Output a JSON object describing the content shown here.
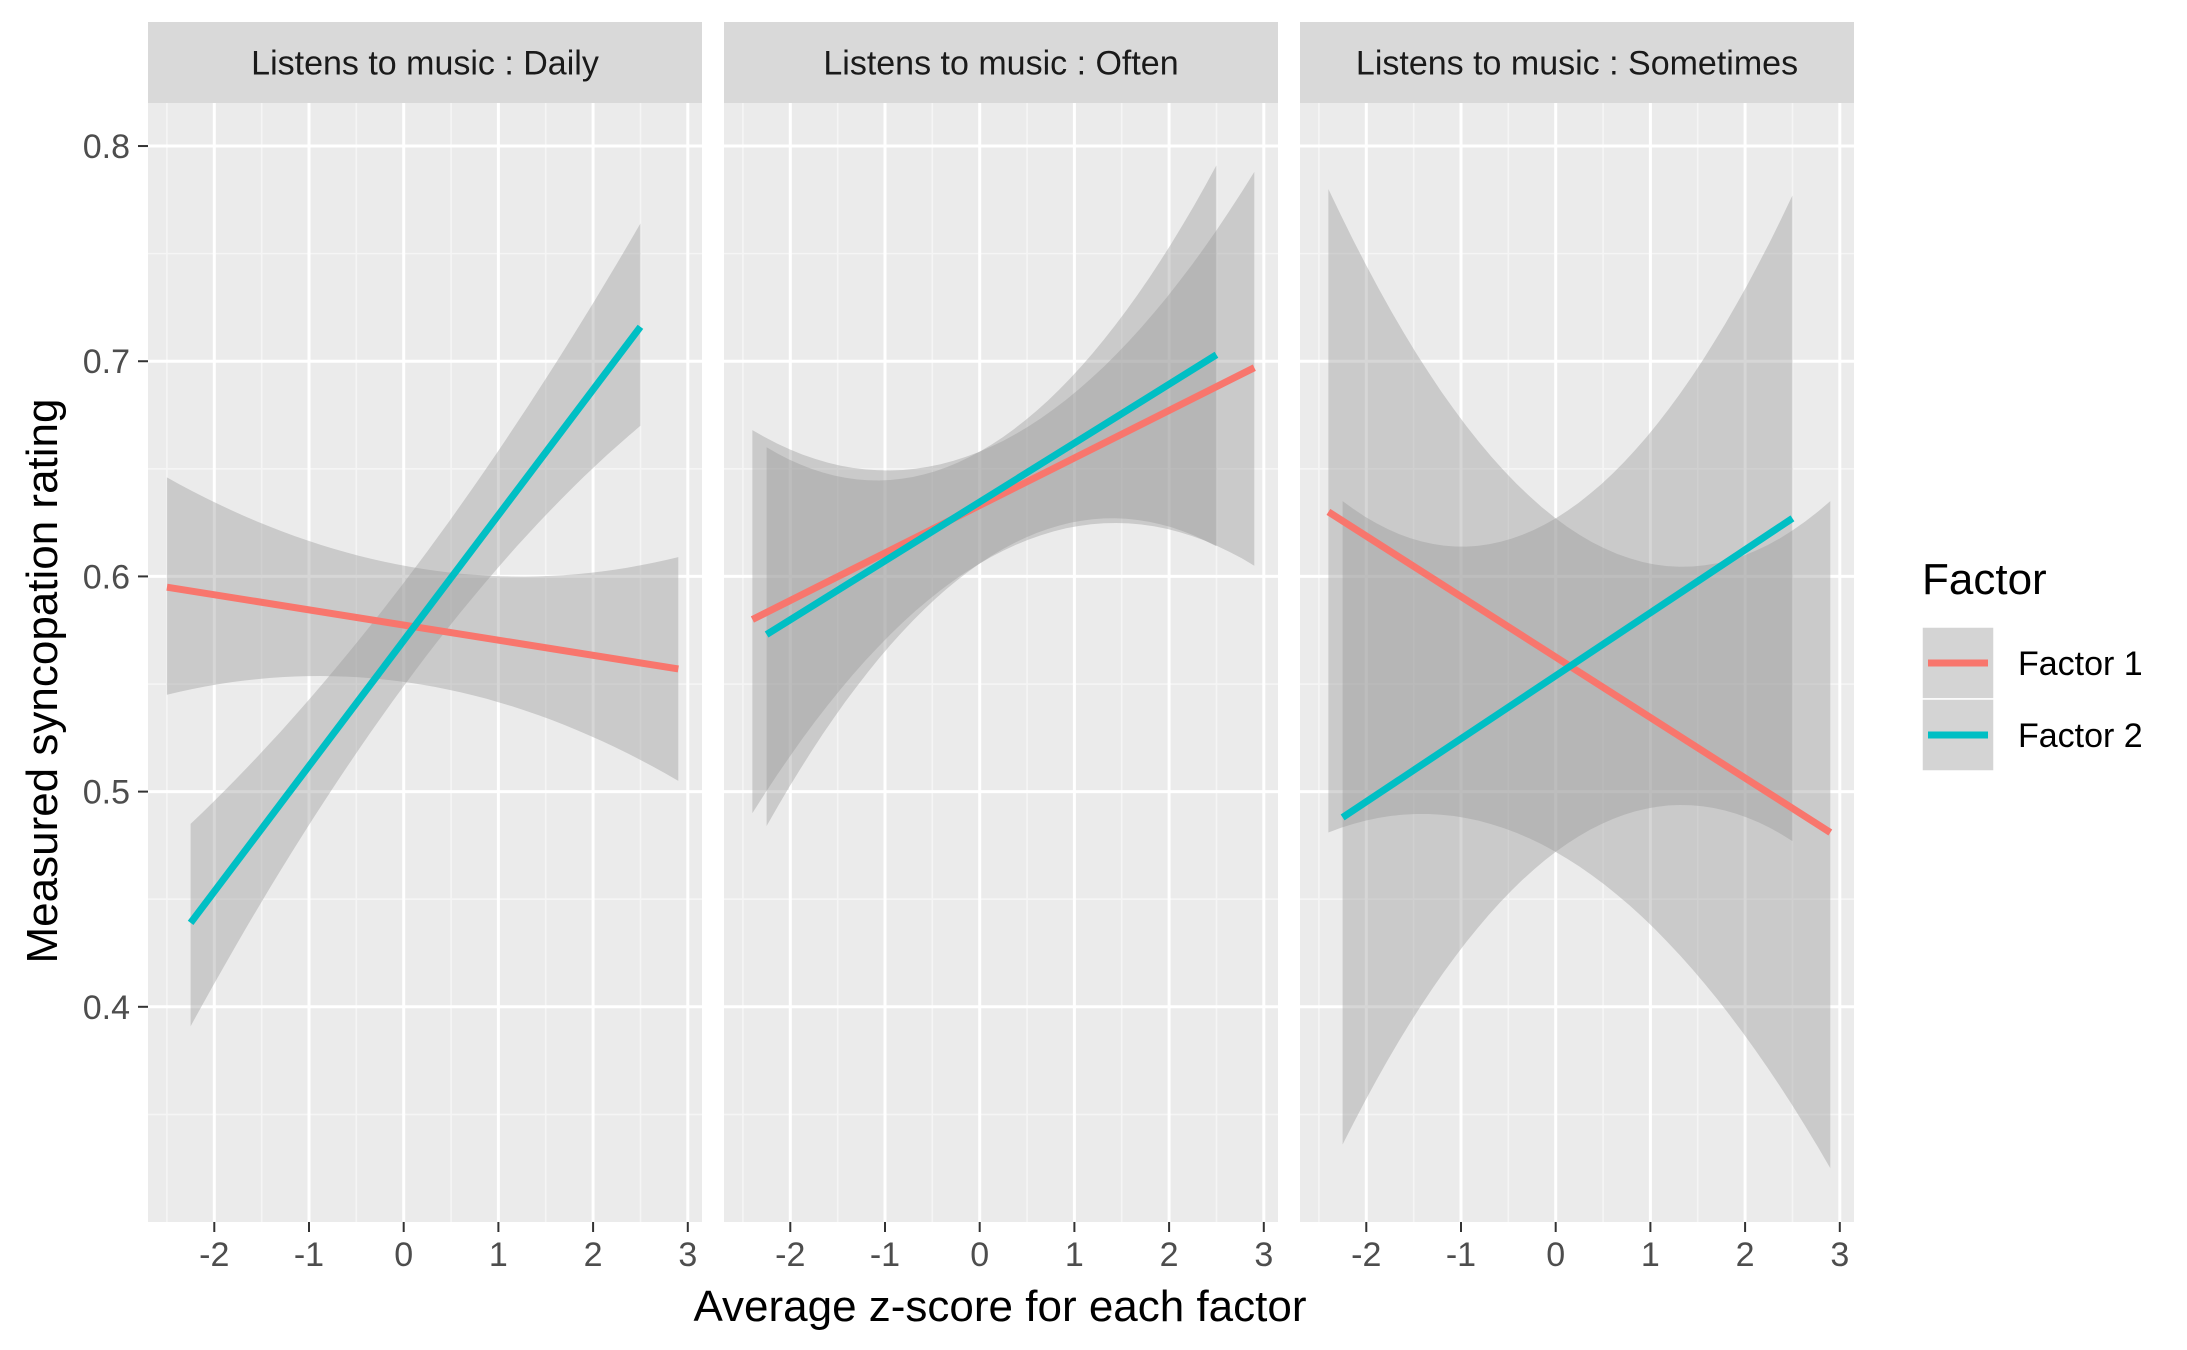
{
  "chart_data": {
    "type": "line",
    "xlabel": "Average z-score for each factor",
    "ylabel": "Measured syncopation rating",
    "xlim": [
      -2.7,
      3.15
    ],
    "ylim": [
      0.3,
      0.82
    ],
    "x_ticks": [
      -2,
      -1,
      0,
      1,
      2,
      3
    ],
    "x_tick_labels": [
      "-2",
      "-1",
      "0",
      "1",
      "2",
      "3"
    ],
    "y_ticks": [
      0.4,
      0.5,
      0.6,
      0.7,
      0.8
    ],
    "y_tick_labels": [
      "0.4",
      "0.5",
      "0.6",
      "0.7",
      "0.8"
    ],
    "grid": true,
    "legend": {
      "title": "Factor",
      "placement": "right",
      "entries": [
        {
          "name": "Factor 1",
          "color": "#F8766D"
        },
        {
          "name": "Factor 2",
          "color": "#00BFC4"
        }
      ]
    },
    "panels": [
      {
        "strip": "Listens to music : Daily",
        "series": [
          {
            "name": "Factor 1",
            "color": "#F8766D",
            "x": [
              -2.5,
              0,
              2.9
            ],
            "y": [
              0.595,
              0.578,
              0.557
            ],
            "lower": [
              0.545,
              0.551,
              0.505
            ],
            "upper": [
              0.646,
              0.605,
              0.609
            ]
          },
          {
            "name": "Factor 2",
            "color": "#00BFC4",
            "x": [
              -2.25,
              0,
              2.5
            ],
            "y": [
              0.439,
              0.573,
              0.716
            ],
            "lower": [
              0.391,
              0.549,
              0.67
            ],
            "upper": [
              0.485,
              0.597,
              0.764
            ]
          }
        ]
      },
      {
        "strip": "Listens to music : Often",
        "series": [
          {
            "name": "Factor 1",
            "color": "#F8766D",
            "x": [
              -2.4,
              0,
              2.9
            ],
            "y": [
              0.58,
              0.632,
              0.697
            ],
            "lower": [
              0.49,
              0.606,
              0.605
            ],
            "upper": [
              0.668,
              0.658,
              0.788
            ]
          },
          {
            "name": "Factor 2",
            "color": "#00BFC4",
            "x": [
              -2.25,
              0,
              2.5
            ],
            "y": [
              0.573,
              0.632,
              0.703
            ],
            "lower": [
              0.484,
              0.606,
              0.614
            ],
            "upper": [
              0.66,
              0.658,
              0.791
            ]
          }
        ]
      },
      {
        "strip": "Listens to music : Sometimes",
        "series": [
          {
            "name": "Factor 1",
            "color": "#F8766D",
            "x": [
              -2.4,
              0,
              2.9
            ],
            "y": [
              0.63,
              0.562,
              0.481
            ],
            "lower": [
              0.481,
              0.472,
              0.325
            ],
            "upper": [
              0.78,
              0.627,
              0.635
            ]
          },
          {
            "name": "Factor 2",
            "color": "#00BFC4",
            "x": [
              -2.25,
              0,
              2.5
            ],
            "y": [
              0.488,
              0.553,
              0.627
            ],
            "lower": [
              0.336,
              0.472,
              0.477
            ],
            "upper": [
              0.635,
              0.627,
              0.777
            ]
          }
        ]
      }
    ]
  }
}
